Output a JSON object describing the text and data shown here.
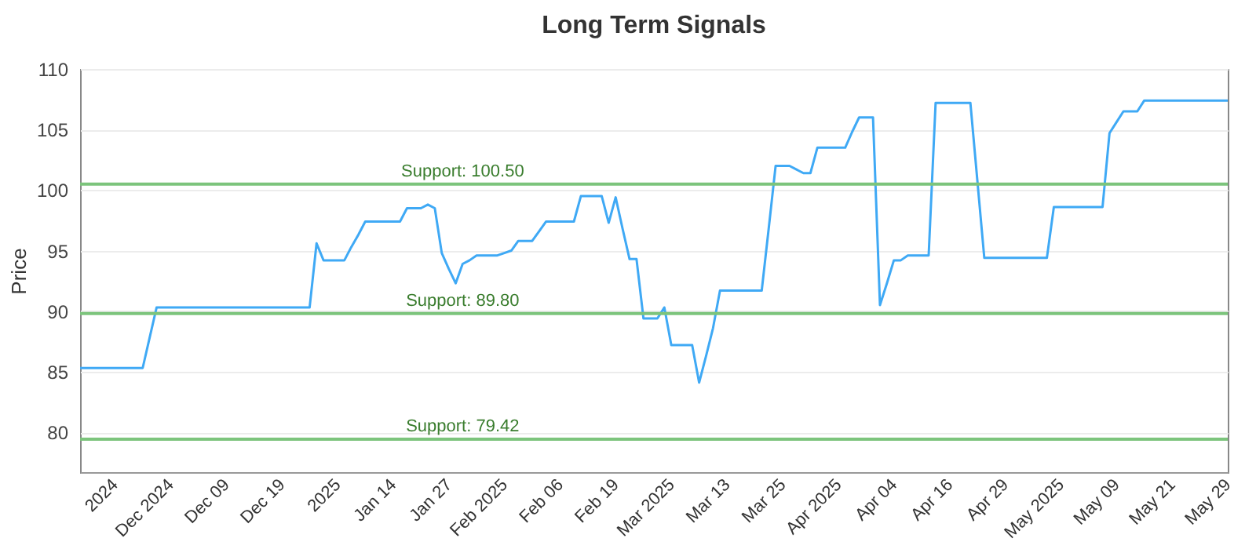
{
  "chart_data": {
    "type": "line",
    "title": "Long Term Signals",
    "ylabel": "Price",
    "categories": [
      null,
      null,
      null,
      null,
      null,
      "2024",
      null,
      null,
      null,
      null,
      null,
      null,
      null,
      "Dec 2024",
      null,
      null,
      null,
      null,
      null,
      null,
      null,
      "Dec 09",
      null,
      null,
      null,
      null,
      null,
      null,
      null,
      "Dec 19",
      null,
      null,
      null,
      null,
      null,
      null,
      null,
      "2025",
      null,
      null,
      null,
      null,
      null,
      null,
      null,
      "Jan 14",
      null,
      null,
      null,
      null,
      null,
      null,
      null,
      "Jan 27",
      null,
      null,
      null,
      null,
      null,
      null,
      null,
      "Feb 2025",
      null,
      null,
      null,
      null,
      null,
      null,
      null,
      "Feb 06",
      null,
      null,
      null,
      null,
      null,
      null,
      null,
      "Feb 19",
      null,
      null,
      null,
      null,
      null,
      null,
      null,
      "Mar 2025",
      null,
      null,
      null,
      null,
      null,
      null,
      null,
      "Mar 13",
      null,
      null,
      null,
      null,
      null,
      null,
      null,
      "Mar 25",
      null,
      null,
      null,
      null,
      null,
      null,
      null,
      "Apr 2025",
      null,
      null,
      null,
      null,
      null,
      null,
      null,
      "Apr 04",
      null,
      null,
      null,
      null,
      null,
      null,
      null,
      "Apr 16",
      null,
      null,
      null,
      null,
      null,
      null,
      null,
      "Apr 29",
      null,
      null,
      null,
      null,
      null,
      null,
      null,
      "May 2025",
      null,
      null,
      null,
      null,
      null,
      null,
      null,
      "May 09",
      null,
      null,
      null,
      null,
      null,
      null,
      null,
      "May 21",
      null,
      null,
      null,
      null,
      null,
      null,
      null,
      "May 29"
    ],
    "series": [
      {
        "color": "#3fa9f5",
        "values": [
          85.3,
          85.3,
          85.3,
          85.3,
          85.3,
          85.3,
          85.3,
          85.3,
          85.3,
          85.3,
          87.8,
          90.3,
          90.3,
          90.3,
          90.3,
          90.3,
          90.3,
          90.3,
          90.3,
          90.3,
          90.3,
          90.3,
          90.3,
          90.3,
          90.3,
          90.3,
          90.3,
          90.3,
          90.3,
          90.3,
          90.3,
          90.3,
          90.3,
          90.3,
          95.6,
          94.2,
          94.2,
          94.2,
          94.2,
          95.3,
          96.3,
          97.4,
          97.4,
          97.4,
          97.4,
          97.4,
          97.4,
          98.5,
          98.5,
          98.5,
          98.8,
          98.5,
          94.8,
          93.5,
          92.3,
          93.9,
          94.2,
          94.6,
          94.6,
          94.6,
          94.6,
          94.8,
          95.0,
          95.8,
          95.8,
          95.8,
          96.6,
          97.4,
          97.4,
          97.4,
          97.4,
          97.4,
          99.5,
          99.5,
          99.5,
          99.5,
          97.3,
          99.4,
          96.8,
          94.3,
          94.3,
          89.4,
          89.4,
          89.4,
          90.3,
          87.2,
          87.2,
          87.2,
          87.2,
          84.1,
          86.3,
          88.6,
          91.7,
          91.7,
          91.7,
          91.7,
          91.7,
          91.7,
          91.7,
          96.8,
          102.0,
          102.0,
          102.0,
          101.7,
          101.4,
          101.4,
          103.5,
          103.5,
          103.5,
          103.5,
          103.5,
          104.8,
          106.0,
          106.0,
          106.0,
          90.5,
          92.3,
          94.2,
          94.2,
          94.6,
          94.6,
          94.6,
          94.6,
          107.2,
          107.2,
          107.2,
          107.2,
          107.2,
          107.2,
          100.8,
          94.4,
          94.4,
          94.4,
          94.4,
          94.4,
          94.4,
          94.4,
          94.4,
          94.4,
          94.4,
          98.6,
          98.6,
          98.6,
          98.6,
          98.6,
          98.6,
          98.6,
          98.6,
          104.7,
          105.6,
          106.5,
          106.5,
          106.5,
          107.4,
          107.4,
          107.4,
          107.4,
          107.4,
          107.4,
          107.4,
          107.4,
          107.4,
          107.4,
          107.4,
          107.4,
          107.4
        ]
      }
    ],
    "ylim": [
      76.7,
      110
    ],
    "yticks": [
      80,
      85,
      90,
      95,
      100,
      105,
      110
    ],
    "grid": "y",
    "marker": "none",
    "line_style": "solid",
    "ref_lines": [
      {
        "axis": "y",
        "value": 100.5,
        "label": "Support: 100.50",
        "color": "#7cc47c"
      },
      {
        "axis": "y",
        "value": 89.8,
        "label": "Support: 89.80",
        "color": "#7cc47c"
      },
      {
        "axis": "y",
        "value": 79.42,
        "label": "Support: 79.42",
        "color": "#7cc47c"
      }
    ]
  }
}
